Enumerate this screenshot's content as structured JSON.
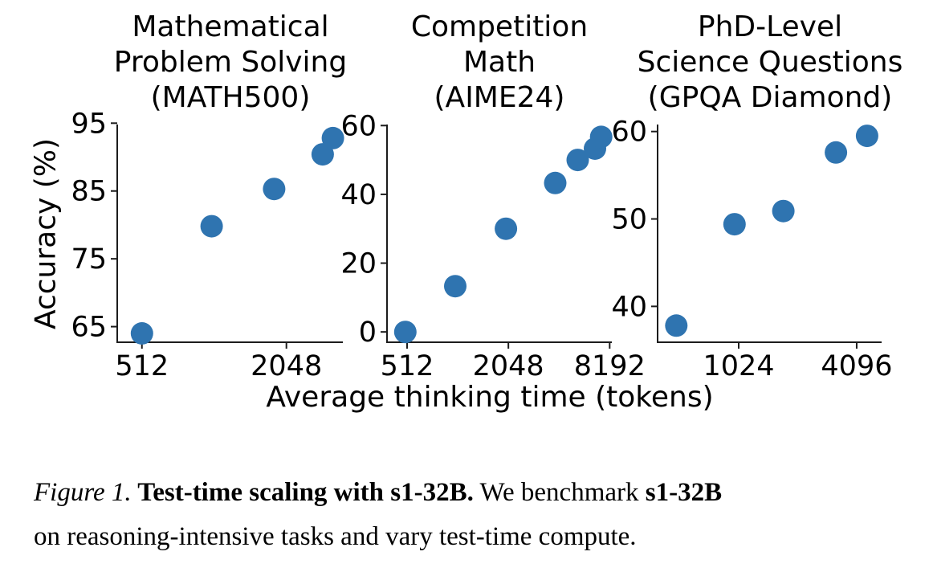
{
  "figure": {
    "y_axis_label": "Accuracy (%)",
    "x_axis_label": "Average thinking time (tokens)",
    "accent_color": "#2f74b0",
    "axis_color": "#1c1c1c"
  },
  "chart_data": [
    {
      "type": "scatter",
      "title": "Mathematical\nProblem Solving\n(MATH500)",
      "x_scale": "log2",
      "grid": false,
      "legend": false,
      "xlim": [
        404,
        3520
      ],
      "ylim": [
        62.7,
        94.8
      ],
      "x_ticks": [
        512,
        2048
      ],
      "y_ticks": [
        65,
        75,
        85,
        95
      ],
      "points": [
        {
          "x": 512,
          "y": 64.0
        },
        {
          "x": 1000,
          "y": 79.8
        },
        {
          "x": 1820,
          "y": 85.3
        },
        {
          "x": 2900,
          "y": 90.4
        },
        {
          "x": 3200,
          "y": 92.8
        }
      ]
    },
    {
      "type": "scatter",
      "title": "Competition\nMath\n(AIME24)",
      "x_scale": "log2",
      "grid": false,
      "legend": false,
      "xlim": [
        389,
        8437
      ],
      "ylim": [
        -3,
        60.3
      ],
      "x_ticks": [
        512,
        2048,
        8192
      ],
      "y_ticks": [
        0,
        20,
        40,
        60
      ],
      "points": [
        {
          "x": 500,
          "y": 0
        },
        {
          "x": 990,
          "y": 13.3
        },
        {
          "x": 1980,
          "y": 30
        },
        {
          "x": 3890,
          "y": 43.3
        },
        {
          "x": 5290,
          "y": 50
        },
        {
          "x": 6700,
          "y": 53.3
        },
        {
          "x": 7290,
          "y": 56.7
        }
      ]
    },
    {
      "type": "scatter",
      "title": "PhD-Level\nScience Questions\n(GPQA Diamond)",
      "x_scale": "log2",
      "grid": false,
      "legend": false,
      "xlim": [
        395,
        5490
      ],
      "ylim": [
        35.9,
        60.8
      ],
      "x_ticks": [
        1024,
        4096
      ],
      "y_ticks": [
        40,
        50,
        60
      ],
      "points": [
        {
          "x": 492,
          "y": 37.8
        },
        {
          "x": 975,
          "y": 49.4
        },
        {
          "x": 1730,
          "y": 50.9
        },
        {
          "x": 3210,
          "y": 57.6
        },
        {
          "x": 4630,
          "y": 59.5
        }
      ]
    }
  ],
  "caption": {
    "lines": [
      [
        {
          "style": "italic",
          "text": "Figure 1."
        },
        {
          "style": "bold",
          "text": " Test-time scaling with s1-32B."
        },
        {
          "style": "normal",
          "text": " We benchmark "
        },
        {
          "style": "bold",
          "text": "s1-32B"
        }
      ],
      [
        {
          "style": "normal",
          "text": "on reasoning-intensive tasks and vary test-time compute."
        }
      ]
    ]
  }
}
